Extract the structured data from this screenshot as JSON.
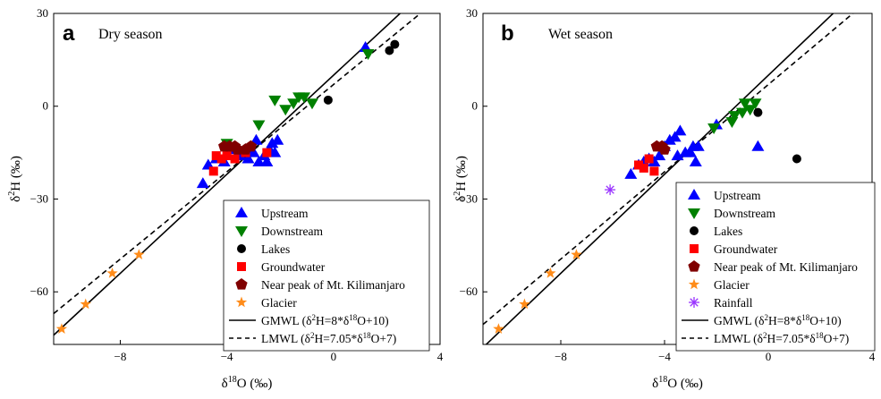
{
  "chart_data": [
    {
      "type": "scatter",
      "panel_label": "a",
      "title": "Dry season",
      "xlabel_main": "δ",
      "xlabel_sup": "18",
      "xlabel_rest": "O (‰)",
      "ylabel_main": "δ",
      "ylabel_sup": "2",
      "ylabel_rest": "H (‰)",
      "xlim": [
        -10.5,
        4
      ],
      "ylim": [
        -77,
        30
      ],
      "xticks": [
        -8,
        -4,
        0,
        4
      ],
      "yticks": [
        -60,
        -30,
        0,
        30
      ],
      "legend_position": "lower-right",
      "series": [
        {
          "name": "Upstream",
          "marker": "triangle-up",
          "color": "#0000ff",
          "x": [
            -4.9,
            -4.7,
            -4.4,
            -4.1,
            -3.9,
            -3.7,
            -3.5,
            -3.2,
            -3.0,
            -2.9,
            -2.8,
            -2.6,
            -2.5,
            -2.4,
            -2.3,
            -2.2,
            -2.1,
            1.2
          ],
          "y": [
            -25,
            -19,
            -17,
            -18,
            -14,
            -13,
            -16,
            -17,
            -15,
            -11,
            -18,
            -16,
            -18,
            -14,
            -12,
            -15,
            -11,
            19
          ]
        },
        {
          "name": "Downstream",
          "marker": "triangle-down",
          "color": "#008000",
          "x": [
            -4.0,
            -2.8,
            -2.2,
            -1.8,
            -1.5,
            -1.3,
            -1.1,
            -0.8,
            1.3
          ],
          "y": [
            -12,
            -6,
            2,
            -1,
            1,
            3,
            3,
            1,
            17
          ]
        },
        {
          "name": "Lakes",
          "marker": "circle",
          "color": "#000000",
          "x": [
            -0.2,
            2.1,
            2.3
          ],
          "y": [
            2,
            18,
            20
          ]
        },
        {
          "name": "Groundwater",
          "marker": "square",
          "color": "#ff0000",
          "x": [
            -4.5,
            -4.4,
            -4.2,
            -4.0,
            -3.7,
            -3.3,
            -2.5
          ],
          "y": [
            -21,
            -16,
            -17,
            -16,
            -17,
            -15,
            -15
          ]
        },
        {
          "name": "Near peak of Mt. Kilimanjaro",
          "marker": "pentagon",
          "color": "#800000",
          "x": [
            -4.1,
            -3.9,
            -3.7,
            -3.6,
            -3.3,
            -3.1
          ],
          "y": [
            -13,
            -13,
            -13,
            -14,
            -14,
            -13
          ]
        },
        {
          "name": "Glacier",
          "marker": "star",
          "color": "#ff8c1a",
          "x": [
            -10.2,
            -9.3,
            -8.3,
            -7.3
          ],
          "y": [
            -72,
            -64,
            -54,
            -48
          ]
        }
      ],
      "lines": [
        {
          "name": "GMWL (δ²H=8*δ¹⁸O+10)",
          "style": "solid",
          "slope": 8,
          "intercept": 10
        },
        {
          "name": "LMWL (δ²H=7.05*δ¹⁸O+7)",
          "style": "dashed",
          "slope": 7.05,
          "intercept": 7
        }
      ],
      "legend_text": [
        {
          "main": "Upstream"
        },
        {
          "main": "Downstream"
        },
        {
          "main": "Lakes"
        },
        {
          "main": "Groundwater"
        },
        {
          "main": "Near peak of Mt. Kilimanjaro"
        },
        {
          "main": "Glacier"
        },
        {
          "main": "GMWL (δ",
          "sup1": "2",
          "mid": "H=8*δ",
          "sup2": "18",
          "end": "O+10)"
        },
        {
          "main": "LMWL (δ",
          "sup1": "2",
          "mid": "H=7.05*δ",
          "sup2": "18",
          "end": "O+7)"
        }
      ]
    },
    {
      "type": "scatter",
      "panel_label": "b",
      "title": "Wet season",
      "xlabel_main": "δ",
      "xlabel_sup": "18",
      "xlabel_rest": "O (‰)",
      "ylabel_main": "δ",
      "ylabel_sup": "2",
      "ylabel_rest": "H (‰)",
      "xlim": [
        -11,
        4
      ],
      "ylim": [
        -77,
        30
      ],
      "xticks": [
        -8,
        -4,
        0,
        4
      ],
      "yticks": [
        -60,
        -30,
        0,
        30
      ],
      "legend_position": "lower-right",
      "series": [
        {
          "name": "Upstream",
          "marker": "triangle-up",
          "color": "#0000ff",
          "x": [
            -5.3,
            -5.0,
            -4.8,
            -4.6,
            -4.4,
            -4.2,
            -4.0,
            -3.8,
            -3.6,
            -3.5,
            -3.4,
            -3.2,
            -3.0,
            -2.9,
            -2.8,
            -2.7,
            -2.0,
            -0.4
          ],
          "y": [
            -22,
            -19,
            -18,
            -17,
            -18,
            -16,
            -13,
            -11,
            -10,
            -16,
            -8,
            -15,
            -15,
            -13,
            -18,
            -13,
            -6,
            -13
          ]
        },
        {
          "name": "Downstream",
          "marker": "triangle-down",
          "color": "#008000",
          "x": [
            -2.1,
            -1.4,
            -1.3,
            -1.0,
            -0.9,
            -0.7,
            -0.5
          ],
          "y": [
            -7,
            -5,
            -3,
            -2,
            1,
            -1,
            1
          ]
        },
        {
          "name": "Lakes",
          "marker": "circle",
          "color": "#000000",
          "x": [
            -0.4,
            1.1
          ],
          "y": [
            -2,
            -17
          ]
        },
        {
          "name": "Groundwater",
          "marker": "square",
          "color": "#ff0000",
          "x": [
            -5.0,
            -4.8,
            -4.6,
            -4.4
          ],
          "y": [
            -19,
            -20,
            -17,
            -21
          ]
        },
        {
          "name": "Near peak of Mt. Kilimanjaro",
          "marker": "pentagon",
          "color": "#800000",
          "x": [
            -4.3,
            -4.1,
            -4.0
          ],
          "y": [
            -13,
            -13,
            -14
          ]
        },
        {
          "name": "Glacier",
          "marker": "star",
          "color": "#ff8c1a",
          "x": [
            -10.4,
            -9.4,
            -8.4,
            -7.4
          ],
          "y": [
            -72,
            -64,
            -54,
            -48
          ]
        },
        {
          "name": "Rainfall",
          "marker": "asterisk",
          "color": "#9933ff",
          "x": [
            -6.1
          ],
          "y": [
            -27
          ]
        }
      ],
      "lines": [
        {
          "name": "GMWL (δ²H=8*δ¹⁸O+10)",
          "style": "solid",
          "slope": 8,
          "intercept": 10
        },
        {
          "name": "LMWL (δ²H=7.05*δ¹⁸O+7)",
          "style": "dashed",
          "slope": 7.05,
          "intercept": 7
        }
      ],
      "legend_text": [
        {
          "main": "Upstream"
        },
        {
          "main": "Downstream"
        },
        {
          "main": "Lakes"
        },
        {
          "main": "Groundwater"
        },
        {
          "main": "Near peak of Mt. Kilimanjaro"
        },
        {
          "main": "Glacier"
        },
        {
          "main": "Rainfall"
        },
        {
          "main": "GMWL (δ",
          "sup1": "2",
          "mid": "H=8*δ",
          "sup2": "18",
          "end": "O+10)"
        },
        {
          "main": "LMWL (δ",
          "sup1": "2",
          "mid": "H=7.05*δ",
          "sup2": "18",
          "end": "O+7)"
        }
      ]
    }
  ]
}
